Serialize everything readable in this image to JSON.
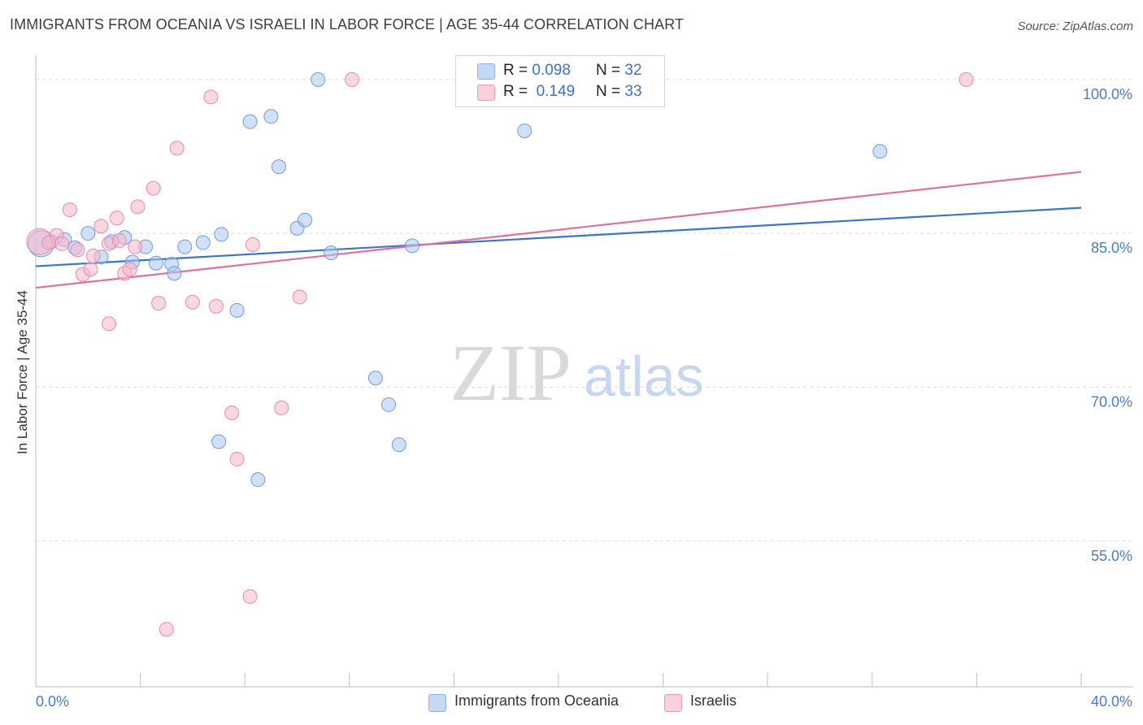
{
  "header": {
    "title": "IMMIGRANTS FROM OCEANIA VS ISRAELI IN LABOR FORCE | AGE 35-44 CORRELATION CHART",
    "source": "Source: ZipAtlas.com"
  },
  "watermark": {
    "zip": "ZIP",
    "atlas": "atlas"
  },
  "legend_top": {
    "rows": [
      {
        "r_label": "R =",
        "r_value": "0.098",
        "n_label": "N =",
        "n_value": "32",
        "color": "#a9c7f0"
      },
      {
        "r_label": "R =",
        "r_value": "0.149",
        "n_label": "N =",
        "n_value": "33",
        "color": "#f7b7cb"
      }
    ]
  },
  "legend_bottom": {
    "items": [
      {
        "label": "Immigrants from Oceania",
        "color": "#a9c7f0"
      },
      {
        "label": "Israelis",
        "color": "#f7b7cb"
      }
    ]
  },
  "chart_data": {
    "type": "scatter",
    "title": "IMMIGRANTS FROM OCEANIA VS ISRAELI IN LABOR FORCE | AGE 35-44 CORRELATION CHART",
    "xlabel": "",
    "ylabel": "In Labor Force | Age 35-44",
    "xlim": [
      0,
      40
    ],
    "ylim": [
      40.8,
      103
    ],
    "x_tick_labels": [
      {
        "value": 0,
        "label": "0.0%"
      },
      {
        "value": 40,
        "label": "40.0%"
      }
    ],
    "y_tick_labels": [
      {
        "value": 100,
        "label": "100.0%"
      },
      {
        "value": 85,
        "label": "85.0%"
      },
      {
        "value": 70,
        "label": "70.0%"
      },
      {
        "value": 55,
        "label": "55.0%"
      }
    ],
    "y_grid_values": [
      100,
      85,
      70,
      55
    ],
    "x_minor_ticks": [
      4,
      8,
      12,
      16,
      20,
      24,
      28,
      32,
      36,
      40
    ],
    "grid": true,
    "legend_position": "top-center",
    "series": [
      {
        "name": "Immigrants from Oceania",
        "color": "#a9c7f0",
        "stroke": "#6f9bdb",
        "trend": {
          "x": [
            0,
            40
          ],
          "y": [
            81.8,
            87.5
          ]
        },
        "points": [
          {
            "x": 0.2,
            "y": 84.0,
            "big": true
          },
          {
            "x": 0.6,
            "y": 84.2
          },
          {
            "x": 1.1,
            "y": 84.4
          },
          {
            "x": 1.5,
            "y": 83.6
          },
          {
            "x": 2.0,
            "y": 85.0
          },
          {
            "x": 2.5,
            "y": 82.7
          },
          {
            "x": 2.9,
            "y": 84.2
          },
          {
            "x": 3.4,
            "y": 84.6
          },
          {
            "x": 3.7,
            "y": 82.2
          },
          {
            "x": 4.2,
            "y": 83.7
          },
          {
            "x": 4.6,
            "y": 82.1
          },
          {
            "x": 5.2,
            "y": 82.0
          },
          {
            "x": 5.3,
            "y": 81.1
          },
          {
            "x": 5.7,
            "y": 83.7
          },
          {
            "x": 6.4,
            "y": 84.1
          },
          {
            "x": 7.1,
            "y": 84.9
          },
          {
            "x": 7.7,
            "y": 77.5
          },
          {
            "x": 8.2,
            "y": 95.9
          },
          {
            "x": 8.5,
            "y": 61.0
          },
          {
            "x": 9.0,
            "y": 96.4
          },
          {
            "x": 9.3,
            "y": 91.5
          },
          {
            "x": 10.0,
            "y": 85.5
          },
          {
            "x": 10.3,
            "y": 86.3
          },
          {
            "x": 10.8,
            "y": 100.0
          },
          {
            "x": 11.3,
            "y": 83.1
          },
          {
            "x": 13.0,
            "y": 70.9
          },
          {
            "x": 13.5,
            "y": 68.3
          },
          {
            "x": 13.9,
            "y": 64.4
          },
          {
            "x": 14.4,
            "y": 83.8
          },
          {
            "x": 18.7,
            "y": 95.0
          },
          {
            "x": 32.3,
            "y": 93.0
          },
          {
            "x": 7.0,
            "y": 64.7
          }
        ]
      },
      {
        "name": "Israelis",
        "color": "#f7b7cb",
        "stroke": "#e88aa8",
        "trend": {
          "x": [
            0,
            40
          ],
          "y": [
            79.7,
            91.0
          ]
        },
        "points": [
          {
            "x": 0.15,
            "y": 84.2,
            "big": true
          },
          {
            "x": 0.8,
            "y": 84.8
          },
          {
            "x": 1.0,
            "y": 84.0
          },
          {
            "x": 1.3,
            "y": 87.3
          },
          {
            "x": 1.6,
            "y": 83.4
          },
          {
            "x": 1.8,
            "y": 81.0
          },
          {
            "x": 2.1,
            "y": 81.5
          },
          {
            "x": 2.2,
            "y": 82.8
          },
          {
            "x": 2.5,
            "y": 85.7
          },
          {
            "x": 2.8,
            "y": 84.0
          },
          {
            "x": 2.8,
            "y": 76.2
          },
          {
            "x": 3.1,
            "y": 86.5
          },
          {
            "x": 3.4,
            "y": 81.1
          },
          {
            "x": 3.6,
            "y": 81.5
          },
          {
            "x": 3.8,
            "y": 83.7
          },
          {
            "x": 3.9,
            "y": 87.6
          },
          {
            "x": 4.5,
            "y": 89.4
          },
          {
            "x": 4.7,
            "y": 78.2
          },
          {
            "x": 5.0,
            "y": 46.4
          },
          {
            "x": 5.4,
            "y": 93.3
          },
          {
            "x": 6.0,
            "y": 78.3
          },
          {
            "x": 6.7,
            "y": 98.3
          },
          {
            "x": 6.9,
            "y": 77.9
          },
          {
            "x": 7.5,
            "y": 67.5
          },
          {
            "x": 7.7,
            "y": 63.0
          },
          {
            "x": 8.2,
            "y": 49.6
          },
          {
            "x": 8.3,
            "y": 83.9
          },
          {
            "x": 9.4,
            "y": 68.0
          },
          {
            "x": 10.1,
            "y": 78.8
          },
          {
            "x": 12.1,
            "y": 100.0
          },
          {
            "x": 35.6,
            "y": 100.0
          },
          {
            "x": 3.2,
            "y": 84.3
          },
          {
            "x": 0.5,
            "y": 84.1
          }
        ]
      }
    ]
  }
}
